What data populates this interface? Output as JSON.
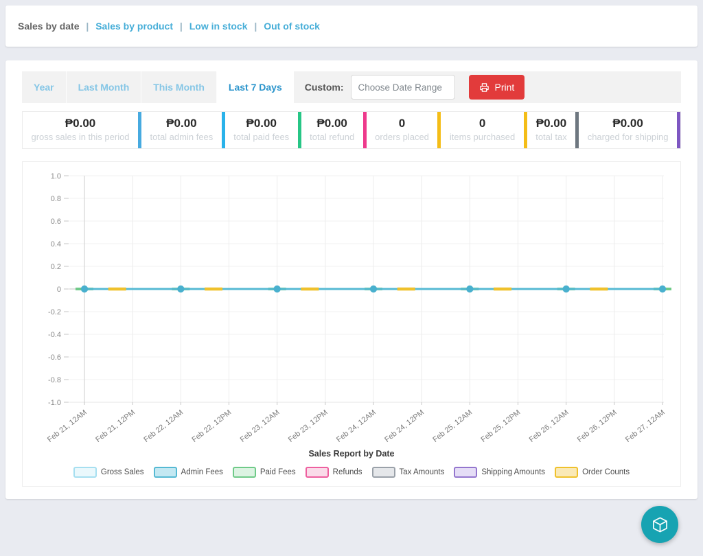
{
  "nav": {
    "current": "Sales by date",
    "separator": "|",
    "links": [
      "Sales by product",
      "Low in stock",
      "Out of stock"
    ]
  },
  "toolbar": {
    "tabs": [
      {
        "label": "Year",
        "active": false
      },
      {
        "label": "Last Month",
        "active": false
      },
      {
        "label": "This Month",
        "active": false
      },
      {
        "label": "Last 7 Days",
        "active": true
      }
    ],
    "custom_label": "Custom:",
    "date_placeholder": "Choose Date Range",
    "print_label": "Print",
    "print_color": "#e23b3b"
  },
  "stats": [
    {
      "value": "₱0.00",
      "label": "gross sales in this period",
      "bar_color": "#47aae0"
    },
    {
      "value": "₱0.00",
      "label": "total admin fees",
      "bar_color": "#29b2ea"
    },
    {
      "value": "₱0.00",
      "label": "total paid fees",
      "bar_color": "#27c686"
    },
    {
      "value": "₱0.00",
      "label": "total refund",
      "bar_color": "#ee3a8c"
    },
    {
      "value": "0",
      "label": "orders placed",
      "bar_color": "#f4bd17"
    },
    {
      "value": "0",
      "label": "items purchased",
      "bar_color": "#f4bd17"
    },
    {
      "value": "₱0.00",
      "label": "total tax",
      "bar_color": "#6e7780"
    },
    {
      "value": "₱0.00",
      "label": "charged for shipping",
      "bar_color": "#7e57c2"
    }
  ],
  "chart_data": {
    "type": "line",
    "title": "Sales Report by Date",
    "x_tick_labels": [
      "Feb 21, 12AM",
      "Feb 21, 12PM",
      "Feb 22, 12AM",
      "Feb 22, 12PM",
      "Feb 23, 12AM",
      "Feb 23, 12PM",
      "Feb 24, 12AM",
      "Feb 24, 12PM",
      "Feb 25, 12AM",
      "Feb 25, 12PM",
      "Feb 26, 12AM",
      "Feb 26, 12PM",
      "Feb 27, 12AM"
    ],
    "point_days": [
      "Feb 21",
      "Feb 22",
      "Feb 23",
      "Feb 24",
      "Feb 25",
      "Feb 26",
      "Feb 27"
    ],
    "y_min": -1.0,
    "y_max": 1.0,
    "y_step": 0.2,
    "grid": true,
    "legend_position": "bottom",
    "xlabel": "",
    "ylabel": "",
    "series": [
      {
        "name": "Gross Sales",
        "line_color": "#a6dff0",
        "fill_color": "#eaf8fc",
        "values": [
          0,
          0,
          0,
          0,
          0,
          0,
          0
        ]
      },
      {
        "name": "Admin Fees",
        "line_color": "#55b9d3",
        "fill_color": "#c3e8f2",
        "values": [
          0,
          0,
          0,
          0,
          0,
          0,
          0
        ],
        "markers": true
      },
      {
        "name": "Paid Fees",
        "line_color": "#6fca88",
        "fill_color": "#dcf3e2",
        "values": [
          0,
          0,
          0,
          0,
          0,
          0,
          0
        ]
      },
      {
        "name": "Refunds",
        "line_color": "#ee5f9f",
        "fill_color": "#fadbe9",
        "values": [
          0,
          0,
          0,
          0,
          0,
          0,
          0
        ]
      },
      {
        "name": "Tax Amounts",
        "line_color": "#9aa1a9",
        "fill_color": "#e5e7ea",
        "values": [
          0,
          0,
          0,
          0,
          0,
          0,
          0
        ]
      },
      {
        "name": "Shipping Amounts",
        "line_color": "#9476ce",
        "fill_color": "#e5ddf6",
        "values": [
          0,
          0,
          0,
          0,
          0,
          0,
          0
        ]
      },
      {
        "name": "Order Counts",
        "line_color": "#efc12c",
        "fill_color": "#fae9b6",
        "values": [
          0,
          0,
          0,
          0,
          0,
          0,
          0
        ]
      }
    ]
  },
  "fab": {
    "icon": "cube-icon",
    "color": "#17a3b2"
  }
}
